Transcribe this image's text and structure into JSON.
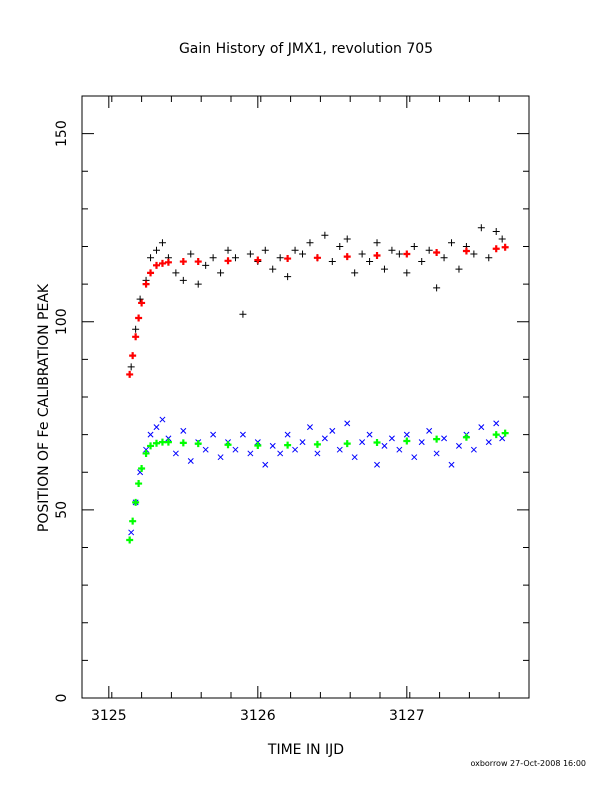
{
  "chart_data": {
    "type": "scatter",
    "title": "Gain History of JMX1, revolution 705",
    "xlabel": "TIME IN IJD",
    "ylabel": "POSITION OF Fe CALIBRATION PEAK",
    "xlim": [
      3124.82,
      3127.82
    ],
    "ylim": [
      0,
      160
    ],
    "xticks": [
      3125,
      3126,
      3127
    ],
    "yticks": [
      0,
      50,
      100,
      150
    ],
    "grid": false,
    "legend": "none",
    "footer": "oxborrow 27-Oct-2008 16:00",
    "series": [
      {
        "marker": "plus",
        "color": "#000000",
        "x": [
          3125.15,
          3125.18,
          3125.21,
          3125.25,
          3125.28,
          3125.32,
          3125.36,
          3125.4,
          3125.45,
          3125.5,
          3125.55,
          3125.6,
          3125.65,
          3125.7,
          3125.75,
          3125.8,
          3125.85,
          3125.9,
          3125.95,
          3126.0,
          3126.05,
          3126.1,
          3126.15,
          3126.2,
          3126.25,
          3126.3,
          3126.35,
          3126.4,
          3126.45,
          3126.5,
          3126.55,
          3126.6,
          3126.65,
          3126.7,
          3126.75,
          3126.8,
          3126.85,
          3126.9,
          3126.95,
          3127.0,
          3127.05,
          3127.1,
          3127.15,
          3127.2,
          3127.25,
          3127.3,
          3127.35,
          3127.4,
          3127.45,
          3127.5,
          3127.55,
          3127.6,
          3127.64
        ],
        "y": [
          88,
          98,
          106,
          111,
          117,
          119,
          121,
          117,
          113,
          111,
          118,
          110,
          115,
          117,
          113,
          119,
          117,
          102,
          118,
          116,
          119,
          114,
          117,
          112,
          119,
          118,
          121,
          117,
          123,
          116,
          120,
          122,
          113,
          118,
          116,
          121,
          114,
          119,
          118,
          113,
          120,
          116,
          119,
          109,
          117,
          121,
          114,
          120,
          118,
          125,
          117,
          124,
          122
        ]
      },
      {
        "marker": "plus",
        "color": "#ff0000",
        "x": [
          3125.14,
          3125.16,
          3125.18,
          3125.2,
          3125.22,
          3125.25,
          3125.28,
          3125.32,
          3125.36,
          3125.4,
          3125.5,
          3125.6,
          3125.8,
          3126.0,
          3126.2,
          3126.4,
          3126.6,
          3126.8,
          3127.0,
          3127.2,
          3127.4,
          3127.6,
          3127.66
        ],
        "y": [
          86,
          91,
          96,
          101,
          105,
          110,
          113,
          115,
          115.5,
          115.8,
          116,
          116,
          116.2,
          116.4,
          116.8,
          117,
          117.3,
          117.6,
          118,
          118.4,
          118.8,
          119.4,
          119.8
        ]
      },
      {
        "marker": "cross",
        "color": "#0000ff",
        "x": [
          3125.15,
          3125.18,
          3125.21,
          3125.25,
          3125.28,
          3125.32,
          3125.36,
          3125.4,
          3125.45,
          3125.5,
          3125.55,
          3125.6,
          3125.65,
          3125.7,
          3125.75,
          3125.8,
          3125.85,
          3125.9,
          3125.95,
          3126.0,
          3126.05,
          3126.1,
          3126.15,
          3126.2,
          3126.25,
          3126.3,
          3126.35,
          3126.4,
          3126.45,
          3126.5,
          3126.55,
          3126.6,
          3126.65,
          3126.7,
          3126.75,
          3126.8,
          3126.85,
          3126.9,
          3126.95,
          3127.0,
          3127.05,
          3127.1,
          3127.15,
          3127.2,
          3127.25,
          3127.3,
          3127.35,
          3127.4,
          3127.45,
          3127.5,
          3127.55,
          3127.6,
          3127.64
        ],
        "y": [
          44,
          52,
          60,
          66,
          70,
          72,
          74,
          69,
          65,
          71,
          63,
          68,
          66,
          70,
          64,
          68,
          66,
          70,
          65,
          68,
          62,
          67,
          65,
          70,
          66,
          68,
          72,
          65,
          69,
          71,
          66,
          73,
          64,
          68,
          70,
          62,
          67,
          69,
          66,
          70,
          64,
          68,
          71,
          65,
          69,
          62,
          67,
          70,
          66,
          72,
          68,
          73,
          69
        ]
      },
      {
        "marker": "plus",
        "color": "#00ff00",
        "x": [
          3125.14,
          3125.16,
          3125.18,
          3125.2,
          3125.22,
          3125.25,
          3125.28,
          3125.32,
          3125.36,
          3125.4,
          3125.5,
          3125.6,
          3125.8,
          3126.0,
          3126.2,
          3126.4,
          3126.6,
          3126.8,
          3127.0,
          3127.2,
          3127.4,
          3127.6,
          3127.66
        ],
        "y": [
          42,
          47,
          52,
          57,
          61,
          65,
          67,
          67.7,
          68,
          68,
          67.8,
          67.6,
          67.3,
          67.1,
          67.2,
          67.4,
          67.6,
          67.9,
          68.3,
          68.8,
          69.3,
          70,
          70.4
        ]
      }
    ]
  }
}
